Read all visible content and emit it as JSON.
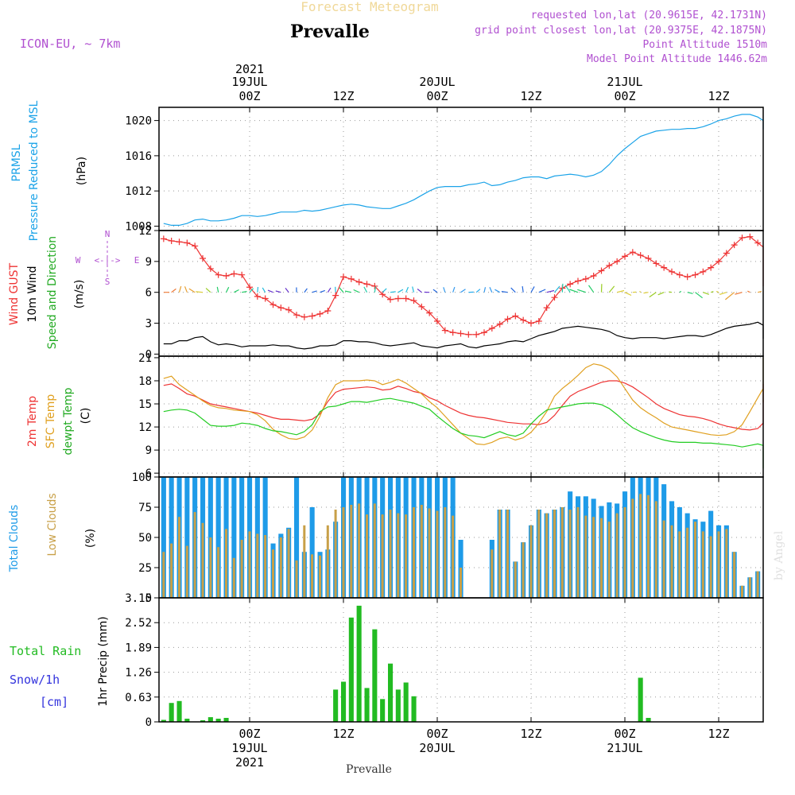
{
  "header": {
    "title": "Forecast Meteogram",
    "location": "Prevalle",
    "model": "ICON-EU, ~ 7km",
    "requested": "requested lon,lat (20.9615E, 42.1731N)",
    "gridpoint": "grid point closest lon,lat (20.9375E, 42.1875N)",
    "point_alt": "Point Altitude 1510m",
    "model_alt": "Model Point Altitude 1446.62m",
    "footer": "Prevalle",
    "watermark": "by Angel"
  },
  "time_axis": {
    "year": "2021",
    "top_dates": [
      "19JUL",
      "20JUL",
      "21JUL"
    ],
    "labels": [
      "00Z",
      "12Z",
      "00Z",
      "12Z",
      "00Z",
      "12Z"
    ],
    "bottom_dates": [
      "19JUL",
      "20JUL",
      "21JUL"
    ]
  },
  "panel_labels": {
    "pressure": [
      "PRMSL",
      "Pressure Reduced to MSL",
      "(hPa)"
    ],
    "wind": [
      "Wind GUST",
      "10m Wind",
      "Speed and Direction",
      "(m/s)"
    ],
    "compass": {
      "w": "W",
      "e": "E",
      "n": "N",
      "s": "S",
      "arrow": "<-|->"
    },
    "temp": [
      "2m Temp",
      "SFC Temp",
      "dewpt Temp",
      "(C)"
    ],
    "clouds": [
      "Total Clouds",
      "Low Clouds",
      "(%)"
    ],
    "precip": [
      "Total  Rain",
      "Snow/1h",
      "[cm]",
      "1hr Precip (mm)"
    ]
  },
  "colors": {
    "pressure": "#1ba3e8",
    "gust": "#ee3333",
    "wind10": "#000000",
    "temp2m": "#ee3333",
    "sfctemp": "#e0a020",
    "dewpt": "#22cc22",
    "totalclouds": "#1e9be8",
    "lowclouds": "#c8a048",
    "rain": "#22bb22",
    "purple": "#b050d0",
    "blue_text": "#3333dd"
  },
  "chart_data": [
    {
      "type": "line",
      "name": "pressure",
      "ylim": [
        1007.5,
        1021.5
      ],
      "yticks": [
        "1008",
        "1012",
        "1016",
        "1020"
      ],
      "x_hours_start": -11,
      "x_hours_step": 1,
      "series": [
        {
          "name": "PRMSL",
          "values": [
            1008.3,
            1008.1,
            1008.1,
            1008.3,
            1008.7,
            1008.8,
            1008.6,
            1008.6,
            1008.7,
            1008.9,
            1009.2,
            1009.2,
            1009.1,
            1009.2,
            1009.4,
            1009.6,
            1009.6,
            1009.6,
            1009.8,
            1009.7,
            1009.8,
            1010.0,
            1010.2,
            1010.4,
            1010.5,
            1010.4,
            1010.2,
            1010.1,
            1010.0,
            1010.0,
            1010.3,
            1010.6,
            1011.0,
            1011.5,
            1012.0,
            1012.4,
            1012.5,
            1012.5,
            1012.5,
            1012.7,
            1012.8,
            1013.0,
            1012.6,
            1012.7,
            1013.0,
            1013.2,
            1013.5,
            1013.6,
            1013.6,
            1013.4,
            1013.7,
            1013.8,
            1013.9,
            1013.8,
            1013.6,
            1013.8,
            1014.2,
            1015.0,
            1016.0,
            1016.8,
            1017.5,
            1018.2,
            1018.5,
            1018.8,
            1018.9,
            1019.0,
            1019.0,
            1019.1,
            1019.1,
            1019.3,
            1019.6,
            1020.0,
            1020.2,
            1020.5,
            1020.7,
            1020.7,
            1020.4,
            1020.0,
            1019.6,
            1019.3,
            1019.0,
            1019.0,
            1019.1,
            1019.5
          ]
        }
      ]
    },
    {
      "type": "line",
      "name": "wind",
      "ylim": [
        -0.2,
        12
      ],
      "yticks": [
        "0",
        "3",
        "6",
        "9",
        "12"
      ],
      "x_hours_start": -11,
      "x_hours_step": 1,
      "series": [
        {
          "name": "Wind GUST",
          "values": [
            11.2,
            11.0,
            10.9,
            10.8,
            10.5,
            9.3,
            8.3,
            7.7,
            7.6,
            7.8,
            7.7,
            6.5,
            5.6,
            5.4,
            4.8,
            4.5,
            4.3,
            3.8,
            3.6,
            3.7,
            3.9,
            4.2,
            5.7,
            7.5,
            7.3,
            7.0,
            6.8,
            6.6,
            5.8,
            5.3,
            5.4,
            5.4,
            5.2,
            4.6,
            4.0,
            3.2,
            2.3,
            2.1,
            2.0,
            1.9,
            1.9,
            2.1,
            2.5,
            2.9,
            3.4,
            3.7,
            3.3,
            3.0,
            3.2,
            4.5,
            5.5,
            6.4,
            6.8,
            7.1,
            7.3,
            7.6,
            8.1,
            8.6,
            9.0,
            9.5,
            9.9,
            9.6,
            9.3,
            8.8,
            8.4,
            8.0,
            7.7,
            7.5,
            7.7,
            8.0,
            8.4,
            9.0,
            9.8,
            10.6,
            11.3,
            11.4,
            10.8,
            10.4,
            9.8,
            9.3,
            8.7,
            8.0,
            7.5,
            7.0,
            6.8,
            6.6
          ]
        },
        {
          "name": "10m Wind",
          "values": [
            1.0,
            1.0,
            1.3,
            1.3,
            1.6,
            1.7,
            1.2,
            0.9,
            1.0,
            0.9,
            0.7,
            0.8,
            0.8,
            0.8,
            0.9,
            0.8,
            0.8,
            0.6,
            0.5,
            0.6,
            0.8,
            0.8,
            0.9,
            1.3,
            1.3,
            1.2,
            1.2,
            1.1,
            0.9,
            0.8,
            0.9,
            1.0,
            1.1,
            0.8,
            0.7,
            0.6,
            0.8,
            0.9,
            1.0,
            0.7,
            0.6,
            0.8,
            0.9,
            1.0,
            1.2,
            1.3,
            1.2,
            1.5,
            1.8,
            2.0,
            2.2,
            2.5,
            2.6,
            2.7,
            2.6,
            2.5,
            2.4,
            2.2,
            1.8,
            1.6,
            1.5,
            1.6,
            1.6,
            1.6,
            1.5,
            1.6,
            1.7,
            1.8,
            1.8,
            1.7,
            1.9,
            2.2,
            2.5,
            2.7,
            2.8,
            2.9,
            3.1,
            2.8,
            2.5,
            2.6,
            2.4,
            2.2,
            2.0,
            1.8,
            1.5
          ]
        }
      ]
    },
    {
      "type": "line",
      "name": "temperature",
      "ylim": [
        5.5,
        21.2
      ],
      "yticks": [
        "6",
        "9",
        "12",
        "15",
        "18",
        "21"
      ],
      "x_hours_start": -11,
      "x_hours_step": 1,
      "series": [
        {
          "name": "2m Temp",
          "values": [
            17.4,
            17.6,
            17.0,
            16.3,
            16.0,
            15.5,
            15.0,
            14.8,
            14.6,
            14.4,
            14.2,
            14.0,
            13.8,
            13.5,
            13.2,
            13.0,
            13.0,
            12.9,
            12.8,
            13.0,
            13.7,
            15.3,
            16.5,
            16.9,
            17.0,
            17.1,
            17.2,
            17.1,
            16.8,
            16.9,
            17.3,
            17.0,
            16.6,
            16.4,
            15.8,
            15.4,
            14.8,
            14.3,
            13.8,
            13.5,
            13.3,
            13.2,
            13.0,
            12.8,
            12.6,
            12.5,
            12.4,
            12.4,
            12.3,
            12.6,
            13.5,
            14.8,
            16.0,
            16.6,
            17.0,
            17.4,
            17.8,
            18.0,
            18.0,
            17.7,
            17.2,
            16.5,
            15.8,
            15.0,
            14.4,
            14.0,
            13.6,
            13.4,
            13.3,
            13.1,
            12.8,
            12.4,
            12.1,
            11.9,
            11.7,
            11.6,
            11.8,
            12.5,
            13.8,
            14.8,
            15.5,
            16.0,
            16.5,
            17.0,
            17.5,
            17.6,
            17.6,
            17.2,
            16.2,
            14.6
          ]
        },
        {
          "name": "SFC Temp",
          "values": [
            18.3,
            18.6,
            17.5,
            16.8,
            16.1,
            15.4,
            14.8,
            14.5,
            14.4,
            14.2,
            14.1,
            14.0,
            13.6,
            12.8,
            11.7,
            11.0,
            10.5,
            10.4,
            10.7,
            11.6,
            13.4,
            15.8,
            17.5,
            18.0,
            18.0,
            18.0,
            18.1,
            18.0,
            17.5,
            17.8,
            18.2,
            17.7,
            17.0,
            16.3,
            15.3,
            14.5,
            13.4,
            12.3,
            11.2,
            10.5,
            9.8,
            9.7,
            10.0,
            10.5,
            10.7,
            10.3,
            10.6,
            11.3,
            12.5,
            14.0,
            16.0,
            17.0,
            17.8,
            18.7,
            19.7,
            20.2,
            20.0,
            19.5,
            18.5,
            17.0,
            15.5,
            14.5,
            13.8,
            13.2,
            12.5,
            12.0,
            11.8,
            11.6,
            11.4,
            11.2,
            11.0,
            10.9,
            11.0,
            11.4,
            12.3,
            14.0,
            15.8,
            17.0,
            18.0,
            19.5,
            20.5,
            21.0,
            20.8,
            20.3,
            19.6,
            18.5,
            17.0,
            15.2
          ]
        },
        {
          "name": "dewpt Temp",
          "values": [
            14.0,
            14.2,
            14.3,
            14.2,
            13.8,
            13.0,
            12.2,
            12.1,
            12.1,
            12.2,
            12.5,
            12.4,
            12.2,
            11.8,
            11.5,
            11.4,
            11.2,
            11.0,
            11.4,
            12.3,
            14.0,
            14.6,
            14.7,
            15.0,
            15.3,
            15.3,
            15.2,
            15.4,
            15.6,
            15.7,
            15.5,
            15.3,
            15.1,
            14.7,
            14.3,
            13.4,
            12.6,
            11.8,
            11.2,
            10.9,
            10.8,
            10.6,
            11.0,
            11.4,
            11.0,
            10.8,
            11.2,
            12.4,
            13.4,
            14.2,
            14.4,
            14.6,
            14.8,
            15.0,
            15.1,
            15.1,
            14.9,
            14.4,
            13.6,
            12.7,
            11.9,
            11.4,
            11.0,
            10.6,
            10.3,
            10.1,
            10.0,
            10.0,
            10.0,
            9.9,
            9.9,
            9.8,
            9.7,
            9.6,
            9.4,
            9.6,
            9.8,
            9.6,
            9.4,
            9.4,
            9.3,
            9.2,
            9.0,
            9.4,
            9.2,
            8.8,
            8.0,
            7.0,
            6.6,
            7.7
          ]
        }
      ]
    },
    {
      "type": "bar",
      "name": "clouds",
      "ylim": [
        0,
        100
      ],
      "yticks": [
        "0",
        "25",
        "50",
        "75",
        "100"
      ],
      "x_hours_start": -11,
      "x_hours_step": 1,
      "series": [
        {
          "name": "Total Clouds",
          "values": [
            100,
            100,
            100,
            100,
            100,
            100,
            100,
            100,
            100,
            100,
            100,
            100,
            100,
            100,
            45,
            53,
            58,
            100,
            38,
            75,
            38,
            40,
            63,
            100,
            100,
            100,
            100,
            100,
            100,
            100,
            100,
            100,
            100,
            100,
            100,
            100,
            100,
            100,
            48,
            0,
            0,
            0,
            48,
            73,
            73,
            30,
            46,
            60,
            73,
            70,
            73,
            75,
            88,
            84,
            84,
            82,
            76,
            79,
            78,
            88,
            100,
            100,
            100,
            100,
            94,
            80,
            75,
            70,
            65,
            63,
            72,
            60,
            60,
            38,
            10,
            17,
            22,
            40,
            45,
            49,
            47,
            41,
            26,
            0,
            0,
            0
          ]
        },
        {
          "name": "Low Clouds",
          "values": [
            38,
            45,
            67,
            43,
            71,
            62,
            50,
            42,
            57,
            33,
            48,
            55,
            53,
            52,
            40,
            50,
            57,
            31,
            60,
            36,
            35,
            60,
            73,
            75,
            77,
            78,
            69,
            78,
            69,
            73,
            70,
            69,
            75,
            77,
            74,
            72,
            75,
            68,
            25,
            0,
            0,
            0,
            40,
            73,
            73,
            30,
            46,
            60,
            73,
            70,
            73,
            75,
            73,
            75,
            68,
            67,
            66,
            63,
            70,
            75,
            82,
            86,
            85,
            80,
            64,
            60,
            55,
            58,
            63,
            55,
            51,
            55,
            57,
            38,
            10,
            17,
            22,
            40,
            45,
            49,
            47,
            41,
            26,
            0,
            0,
            0
          ]
        }
      ]
    },
    {
      "type": "bar",
      "name": "precipitation",
      "ylim": [
        0,
        3.15
      ],
      "yticks": [
        "0",
        "0.63",
        "1.26",
        "1.89",
        "2.52",
        "3.15"
      ],
      "x_hours_start": -11,
      "x_hours_step": 1,
      "series": [
        {
          "name": "Total Rain",
          "values": [
            0.05,
            0.48,
            0.53,
            0.08,
            0,
            0.04,
            0.12,
            0.08,
            0.1,
            0,
            0,
            0,
            0,
            0,
            0,
            0,
            0,
            0,
            0,
            0,
            0,
            0,
            0.82,
            1.02,
            2.65,
            2.95,
            0.86,
            2.35,
            0.58,
            1.48,
            0.82,
            1.0,
            0.65,
            0,
            0,
            0,
            0,
            0,
            0,
            0,
            0,
            0,
            0,
            0,
            0,
            0,
            0,
            0,
            0,
            0,
            0,
            0,
            0,
            0,
            0,
            0,
            0,
            0,
            0,
            0,
            0,
            1.12,
            0.1,
            0,
            0,
            0,
            0,
            0,
            0,
            0,
            0,
            0,
            0,
            0,
            0,
            0,
            0,
            0,
            0,
            0,
            0,
            0,
            0,
            0,
            0
          ]
        }
      ]
    }
  ]
}
